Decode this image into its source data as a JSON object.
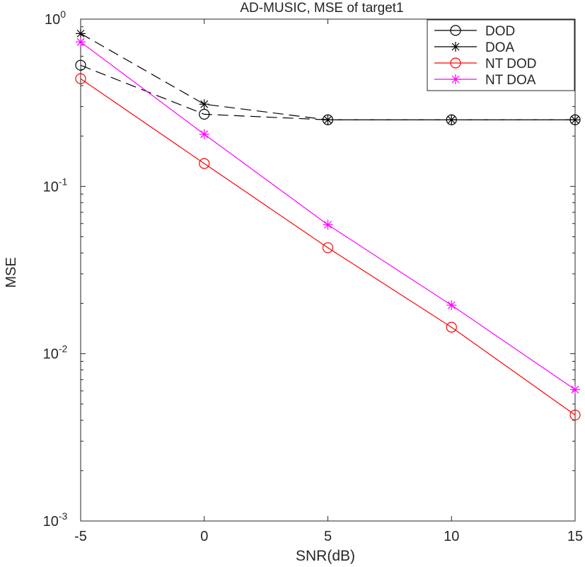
{
  "chart_data": {
    "type": "line",
    "title": "AD-MUSIC, MSE of target1",
    "xlabel": "SNR(dB)",
    "ylabel": "MSE",
    "xlim": [
      -5,
      15
    ],
    "ylim": [
      0.001,
      1
    ],
    "y_scale": "log",
    "grid": false,
    "legend_position": "top-right",
    "x": [
      -5,
      0,
      5,
      10,
      15
    ],
    "x_ticks": [
      "-5",
      "0",
      "5",
      "10",
      "15"
    ],
    "y_ticks": [
      {
        "value": 1,
        "base": "10",
        "exp": "0"
      },
      {
        "value": 0.1,
        "base": "10",
        "exp": "-1"
      },
      {
        "value": 0.01,
        "base": "10",
        "exp": "-2"
      },
      {
        "value": 0.001,
        "base": "10",
        "exp": "-3"
      }
    ],
    "series": [
      {
        "name": "DOD",
        "values": [
          0.53,
          0.27,
          0.25,
          0.25,
          0.25
        ],
        "color": "#000000",
        "marker": "circle",
        "line": "dashed"
      },
      {
        "name": "DOA",
        "values": [
          0.82,
          0.31,
          0.25,
          0.25,
          0.25
        ],
        "color": "#000000",
        "marker": "star",
        "line": "dashed"
      },
      {
        "name": "NT DOD",
        "values": [
          0.44,
          0.137,
          0.043,
          0.0144,
          0.0043
        ],
        "color": "#ff0000",
        "marker": "circle",
        "line": "solid"
      },
      {
        "name": "NT DOA",
        "values": [
          0.73,
          0.205,
          0.059,
          0.0195,
          0.0061
        ],
        "color": "#ff00ff",
        "marker": "star",
        "line": "solid"
      }
    ]
  }
}
